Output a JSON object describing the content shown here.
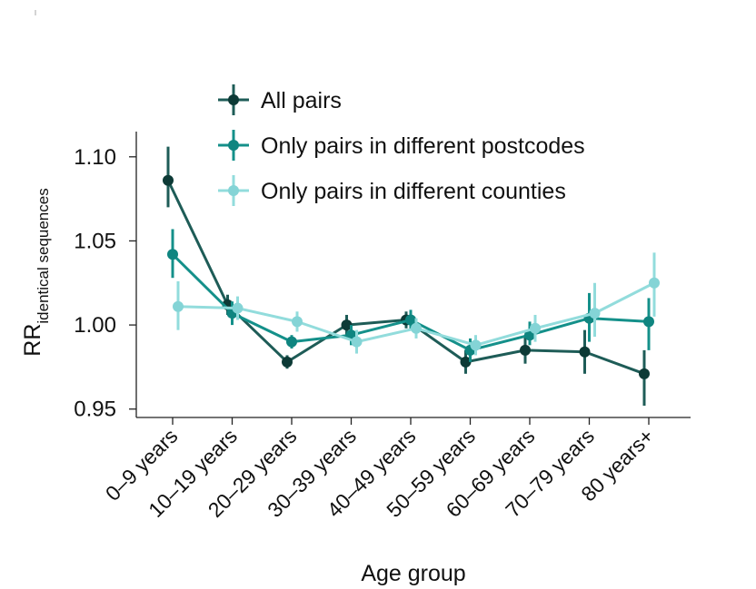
{
  "chart_data": {
    "type": "line",
    "title": "",
    "xlabel": "Age group",
    "ylabel": "RR",
    "ylabel_subscript": "identical sequences",
    "ylim": [
      0.945,
      1.115
    ],
    "yticks": [
      "0.95",
      "1.00",
      "1.05",
      "1.10"
    ],
    "ytick_values": [
      0.95,
      1.0,
      1.05,
      1.1
    ],
    "categories": [
      "0–9 years",
      "10–19 years",
      "20–29 years",
      "30–39 years",
      "40–49 years",
      "50–59 years",
      "60–69 years",
      "70–79 years",
      "80 years+"
    ],
    "legend_position": "top",
    "series": [
      {
        "name": "All pairs",
        "color": "#1e5c57",
        "marker_color": "#0d3a36",
        "values": [
          1.086,
          1.012,
          0.978,
          1.0,
          1.003,
          0.978,
          0.985,
          0.984,
          0.971
        ],
        "lower": [
          1.07,
          1.006,
          0.974,
          0.994,
          0.998,
          0.971,
          0.977,
          0.971,
          0.952
        ],
        "upper": [
          1.106,
          1.018,
          0.982,
          1.006,
          1.008,
          0.985,
          0.994,
          0.997,
          0.985
        ]
      },
      {
        "name": "Only pairs in different postcodes",
        "color": "#14908a",
        "marker_color": "#0f8580",
        "values": [
          1.042,
          1.007,
          0.99,
          0.994,
          1.003,
          0.985,
          0.994,
          1.004,
          1.002
        ],
        "lower": [
          1.028,
          1.0,
          0.986,
          0.988,
          0.997,
          0.978,
          0.988,
          0.99,
          0.985
        ],
        "upper": [
          1.057,
          1.014,
          0.994,
          1.0,
          1.009,
          0.992,
          1.002,
          1.019,
          1.016
        ]
      },
      {
        "name": "Only pairs in different counties",
        "color": "#92dcdc",
        "marker_color": "#84d4d6",
        "values": [
          1.011,
          1.01,
          1.002,
          0.99,
          0.998,
          0.988,
          0.998,
          1.007,
          1.025
        ],
        "lower": [
          0.997,
          1.003,
          0.996,
          0.983,
          0.992,
          0.982,
          0.99,
          0.993,
          1.005
        ],
        "upper": [
          1.026,
          1.017,
          1.008,
          0.997,
          1.004,
          0.994,
          1.006,
          1.025,
          1.043
        ]
      }
    ]
  }
}
